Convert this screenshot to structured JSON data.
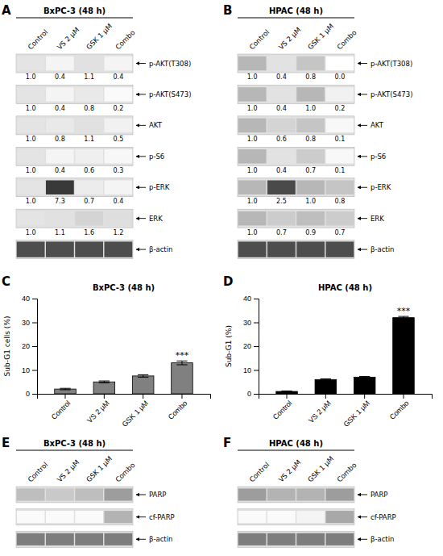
{
  "chart_data": [
    {
      "type": "heatmap",
      "panel_label": "A",
      "title": "BxPC-3 (48 h)",
      "categories": [
        "Control",
        "VS 2 μM",
        "GSK 1 μM",
        "Combo"
      ],
      "series": [
        {
          "name": "p-AKT(T308)",
          "values": [
            1.0,
            0.4,
            1.1,
            0.4
          ],
          "value_labels": [
            "1.0",
            "0.4",
            "1.1",
            "0.4"
          ]
        },
        {
          "name": "p-AKT(S473)",
          "values": [
            1.0,
            0.4,
            0.8,
            0.2
          ],
          "value_labels": [
            "1.0",
            "0.4",
            "0.8",
            "0.2"
          ]
        },
        {
          "name": "AKT",
          "values": [
            1.0,
            0.8,
            1.1,
            0.5
          ],
          "value_labels": [
            "1.0",
            "0.8",
            "1.1",
            "0.5"
          ]
        },
        {
          "name": "p-S6",
          "values": [
            1.0,
            0.4,
            0.6,
            0.3
          ],
          "value_labels": [
            "1.0",
            "0.4",
            "0.6",
            "0.3"
          ]
        },
        {
          "name": "p-ERK",
          "values": [
            1.0,
            7.3,
            0.7,
            0.4
          ],
          "value_labels": [
            "1.0",
            "7.3",
            "0.7",
            "0.4"
          ]
        },
        {
          "name": "ERK",
          "values": [
            1.0,
            1.1,
            1.6,
            1.2
          ],
          "value_labels": [
            "1.0",
            "1.1",
            "1.6",
            "1.2"
          ]
        },
        {
          "name": "β-actin",
          "values": [
            null,
            null,
            null,
            null
          ]
        }
      ],
      "color_range": [
        0,
        8
      ],
      "data_labels": true
    },
    {
      "type": "heatmap",
      "panel_label": "B",
      "title": "HPAC (48 h)",
      "categories": [
        "Control",
        "VS 2 μM",
        "GSK 1 μM",
        "Combo"
      ],
      "series": [
        {
          "name": "p-AKT(T308)",
          "values": [
            1.0,
            0.4,
            0.8,
            0.0
          ],
          "value_labels": [
            "1.0",
            "0.4",
            "0.8",
            "0.0"
          ]
        },
        {
          "name": "p-AKT(S473)",
          "values": [
            1.0,
            0.4,
            1.0,
            0.2
          ],
          "value_labels": [
            "1.0",
            "0.4",
            "1.0",
            "0.2"
          ]
        },
        {
          "name": "AKT",
          "values": [
            1.0,
            0.6,
            0.8,
            0.1
          ],
          "value_labels": [
            "1.0",
            "0.6",
            "0.8",
            "0.1"
          ]
        },
        {
          "name": "p-S6",
          "values": [
            1.0,
            0.4,
            0.7,
            0.1
          ],
          "value_labels": [
            "1.0",
            "0.4",
            "0.7",
            "0.1"
          ]
        },
        {
          "name": "p-ERK",
          "values": [
            1.0,
            2.5,
            1.0,
            0.8
          ],
          "value_labels": [
            "1.0",
            "2.5",
            "1.0",
            "0.8"
          ]
        },
        {
          "name": "ERK",
          "values": [
            1.0,
            0.7,
            0.9,
            0.7
          ],
          "value_labels": [
            "1.0",
            "0.7",
            "0.9",
            "0.7"
          ]
        },
        {
          "name": "β-actin",
          "values": [
            null,
            null,
            null,
            null
          ]
        }
      ],
      "color_range": [
        0,
        3
      ],
      "data_labels": true
    },
    {
      "type": "bar",
      "panel_label": "C",
      "title": "BxPC-3 (48 h)",
      "categories": [
        "Control",
        "VS 2 μM",
        "GSK 1 μM",
        "Combo"
      ],
      "values": [
        2.0,
        5.0,
        7.5,
        13.0
      ],
      "errors": [
        0.3,
        0.4,
        0.5,
        0.8
      ],
      "color": "#808080",
      "y_label": "Sub-G1 cells (%)",
      "ylim": [
        0,
        40
      ],
      "yticks": [
        0,
        10,
        20,
        30,
        40
      ],
      "grid": false,
      "annotations": [
        {
          "text": "***",
          "category": "Combo"
        }
      ]
    },
    {
      "type": "bar",
      "panel_label": "D",
      "title": "HPAC (48 h)",
      "categories": [
        "Control",
        "VS 2 μM",
        "GSK 1 μM",
        "Combo"
      ],
      "values": [
        1.0,
        6.0,
        7.0,
        32.0
      ],
      "errors": [
        0.2,
        0.3,
        0.3,
        0.5
      ],
      "color": "#000000",
      "y_label": "Sub-G1 (%)",
      "ylim": [
        0,
        40
      ],
      "yticks": [
        0,
        10,
        20,
        30,
        40
      ],
      "grid": false,
      "annotations": [
        {
          "text": "***",
          "category": "Combo"
        }
      ]
    },
    {
      "type": "heatmap",
      "panel_label": "E",
      "title": "BxPC-3 (48 h)",
      "categories": [
        "Control",
        "VS 2 μM",
        "GSK 1 μM",
        "Combo"
      ],
      "series": [
        {
          "name": "PARP",
          "values": [
            0.6,
            0.5,
            0.6,
            0.9
          ]
        },
        {
          "name": "cf-PARP",
          "values": [
            0.05,
            0.05,
            0.05,
            0.7
          ]
        },
        {
          "name": "β-actin",
          "values": [
            1.2,
            1.2,
            1.2,
            1.2
          ]
        }
      ],
      "color_range": [
        0,
        2
      ],
      "data_labels": false
    },
    {
      "type": "heatmap",
      "panel_label": "F",
      "title": "HPAC (48 h)",
      "categories": [
        "Control",
        "VS 2 μM",
        "GSK 1 μM",
        "Combo"
      ],
      "series": [
        {
          "name": "PARP",
          "values": [
            0.9,
            0.7,
            0.7,
            0.9
          ]
        },
        {
          "name": "cf-PARP",
          "values": [
            0.05,
            0.05,
            0.1,
            0.8
          ]
        },
        {
          "name": "β-actin",
          "values": [
            1.2,
            1.2,
            1.2,
            1.2
          ]
        }
      ],
      "color_range": [
        0,
        2
      ],
      "data_labels": false
    }
  ]
}
